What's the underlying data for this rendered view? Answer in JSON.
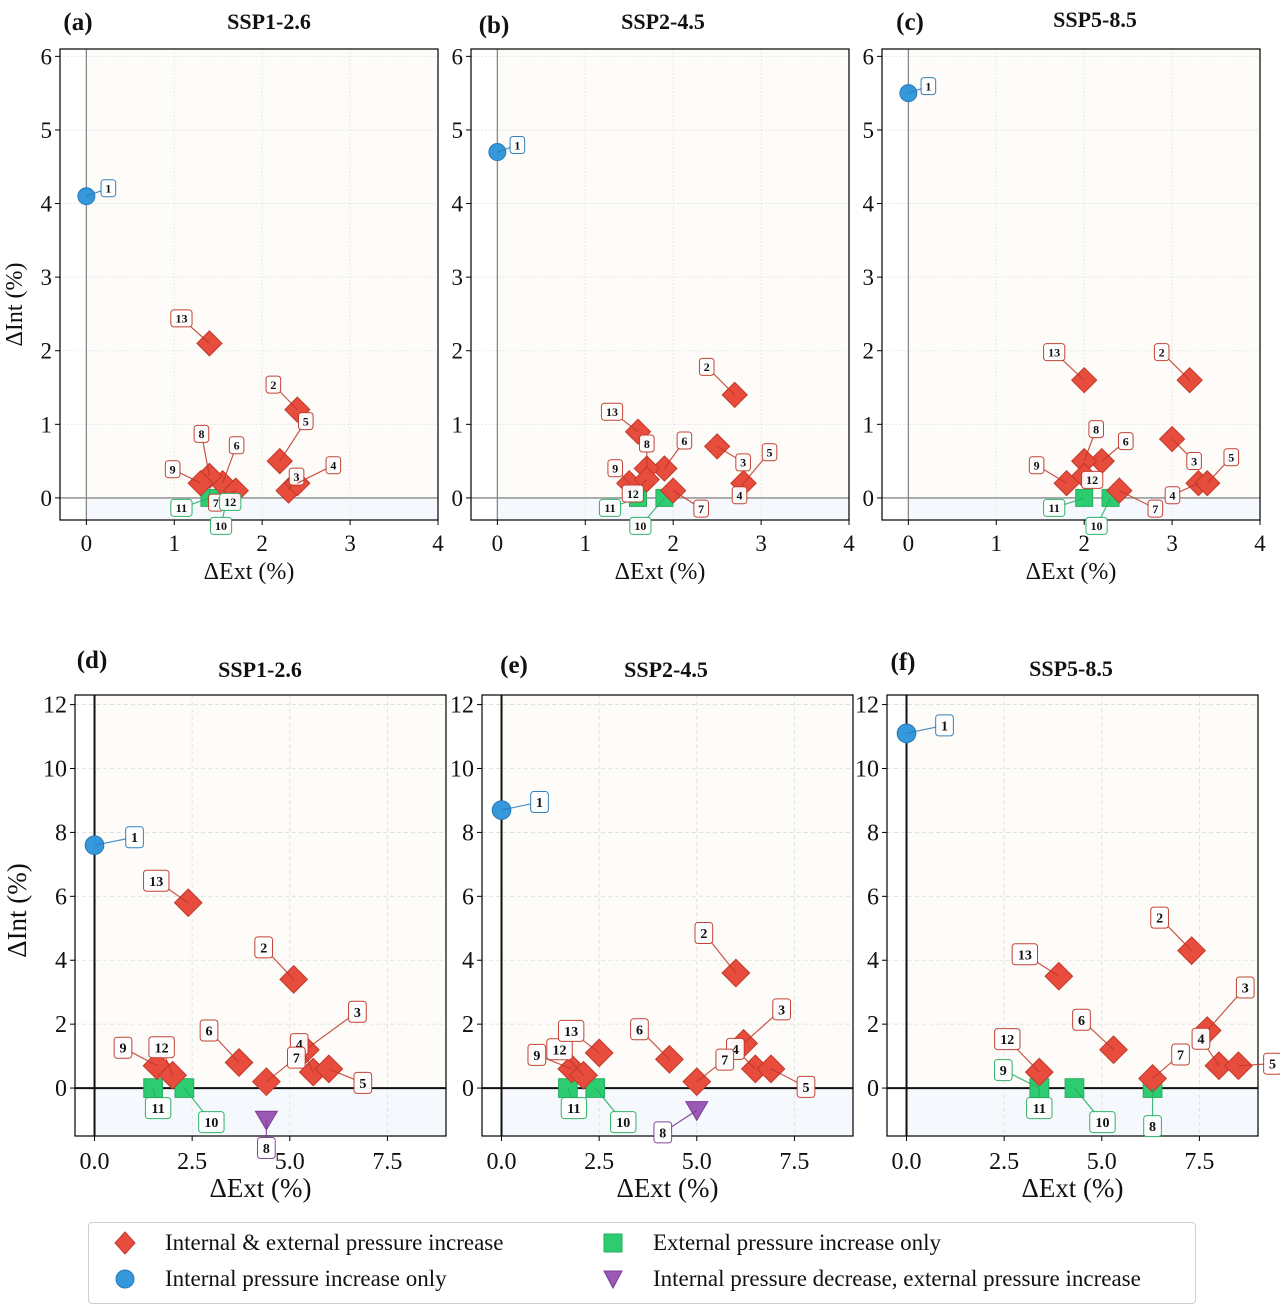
{
  "chart_data": [
    {
      "type": "scatter",
      "panel_label": "(a)",
      "title": "SSP1-2.6",
      "xlabel": "ΔExt (%)",
      "ylabel": "ΔInt (%)",
      "xlim": [
        -0.3,
        4
      ],
      "ylim": [
        -0.3,
        6.1
      ],
      "xticks": [
        0,
        1,
        2,
        3,
        4
      ],
      "xtick_labels": [
        "0",
        "1",
        "2",
        "3",
        "4"
      ],
      "yticks": [
        0,
        1,
        2,
        3,
        4,
        5,
        6
      ],
      "ytick_labels": [
        "0",
        "1",
        "2",
        "3",
        "4",
        "5",
        "6"
      ],
      "grid": true,
      "points": [
        {
          "id": "1",
          "x": 0.0,
          "y": 4.1,
          "category": "internal_only"
        },
        {
          "id": "2",
          "x": 2.4,
          "y": 1.2,
          "category": "both"
        },
        {
          "id": "3",
          "x": 2.3,
          "y": 0.1,
          "category": "both"
        },
        {
          "id": "4",
          "x": 2.4,
          "y": 0.2,
          "category": "both"
        },
        {
          "id": "5",
          "x": 2.2,
          "y": 0.5,
          "category": "both"
        },
        {
          "id": "6",
          "x": 1.55,
          "y": 0.2,
          "category": "both"
        },
        {
          "id": "7",
          "x": 1.7,
          "y": 0.1,
          "category": "both"
        },
        {
          "id": "8",
          "x": 1.4,
          "y": 0.3,
          "category": "both"
        },
        {
          "id": "9",
          "x": 1.3,
          "y": 0.2,
          "category": "both"
        },
        {
          "id": "10",
          "x": 1.6,
          "y": 0.0,
          "category": "external_only"
        },
        {
          "id": "11",
          "x": 1.4,
          "y": 0.0,
          "category": "external_only"
        },
        {
          "id": "12",
          "x": 1.5,
          "y": 0.0,
          "category": "external_only"
        },
        {
          "id": "13",
          "x": 1.4,
          "y": 2.1,
          "category": "both"
        }
      ]
    },
    {
      "type": "scatter",
      "panel_label": "(b)",
      "title": "SSP2-4.5",
      "xlabel": "ΔExt (%)",
      "ylabel": "",
      "xlim": [
        -0.3,
        4
      ],
      "ylim": [
        -0.3,
        6.1
      ],
      "xticks": [
        0,
        1,
        2,
        3,
        4
      ],
      "xtick_labels": [
        "0",
        "1",
        "2",
        "3",
        "4"
      ],
      "yticks": [
        0,
        1,
        2,
        3,
        4,
        5,
        6
      ],
      "ytick_labels": [
        "0",
        "1",
        "2",
        "3",
        "4",
        "5",
        "6"
      ],
      "grid": true,
      "points": [
        {
          "id": "1",
          "x": 0.0,
          "y": 4.7,
          "category": "internal_only"
        },
        {
          "id": "2",
          "x": 2.7,
          "y": 1.4,
          "category": "both"
        },
        {
          "id": "3",
          "x": 2.5,
          "y": 0.7,
          "category": "both"
        },
        {
          "id": "4",
          "x": 2.8,
          "y": 0.2,
          "category": "both"
        },
        {
          "id": "5",
          "x": 2.8,
          "y": 0.2,
          "category": "both"
        },
        {
          "id": "6",
          "x": 1.9,
          "y": 0.4,
          "category": "both"
        },
        {
          "id": "7",
          "x": 2.0,
          "y": 0.1,
          "category": "both"
        },
        {
          "id": "8",
          "x": 1.7,
          "y": 0.4,
          "category": "both"
        },
        {
          "id": "9",
          "x": 1.5,
          "y": 0.2,
          "category": "both"
        },
        {
          "id": "10",
          "x": 1.9,
          "y": 0.0,
          "category": "external_only"
        },
        {
          "id": "11",
          "x": 1.6,
          "y": 0.0,
          "category": "external_only"
        },
        {
          "id": "12",
          "x": 1.7,
          "y": 0.25,
          "category": "both"
        },
        {
          "id": "13",
          "x": 1.6,
          "y": 0.9,
          "category": "both"
        }
      ]
    },
    {
      "type": "scatter",
      "panel_label": "(c)",
      "title": "SSP5-8.5",
      "xlabel": "ΔExt (%)",
      "ylabel": "",
      "xlim": [
        -0.3,
        4
      ],
      "ylim": [
        -0.3,
        6.1
      ],
      "xticks": [
        0,
        1,
        2,
        3,
        4
      ],
      "xtick_labels": [
        "0",
        "1",
        "2",
        "3",
        "4"
      ],
      "yticks": [
        0,
        1,
        2,
        3,
        4,
        5,
        6
      ],
      "ytick_labels": [
        "0",
        "1",
        "2",
        "3",
        "4",
        "5",
        "6"
      ],
      "grid": true,
      "points": [
        {
          "id": "1",
          "x": 0.0,
          "y": 5.5,
          "category": "internal_only"
        },
        {
          "id": "2",
          "x": 3.2,
          "y": 1.6,
          "category": "both"
        },
        {
          "id": "3",
          "x": 3.0,
          "y": 0.8,
          "category": "both"
        },
        {
          "id": "4",
          "x": 3.3,
          "y": 0.2,
          "category": "both"
        },
        {
          "id": "5",
          "x": 3.4,
          "y": 0.2,
          "category": "both"
        },
        {
          "id": "6",
          "x": 2.2,
          "y": 0.5,
          "category": "both"
        },
        {
          "id": "7",
          "x": 2.4,
          "y": 0.1,
          "category": "both"
        },
        {
          "id": "8",
          "x": 2.0,
          "y": 0.5,
          "category": "both"
        },
        {
          "id": "9",
          "x": 1.8,
          "y": 0.2,
          "category": "both"
        },
        {
          "id": "10",
          "x": 2.3,
          "y": 0.0,
          "category": "external_only"
        },
        {
          "id": "11",
          "x": 2.0,
          "y": 0.0,
          "category": "external_only"
        },
        {
          "id": "12",
          "x": 2.0,
          "y": 0.3,
          "category": "both"
        },
        {
          "id": "13",
          "x": 2.0,
          "y": 1.6,
          "category": "both"
        }
      ]
    },
    {
      "type": "scatter",
      "panel_label": "(d)",
      "title": "SSP1-2.6",
      "xlabel": "ΔExt (%)",
      "ylabel": "ΔInt (%)",
      "xlim": [
        -0.5,
        9
      ],
      "ylim": [
        -1.5,
        12.3
      ],
      "xticks": [
        0,
        2.5,
        5,
        7.5
      ],
      "xtick_labels": [
        "0.0",
        "2.5",
        "5.0",
        "7.5"
      ],
      "yticks": [
        0,
        2,
        4,
        6,
        8,
        10,
        12
      ],
      "ytick_labels": [
        "0",
        "2",
        "4",
        "6",
        "8",
        "10",
        "12"
      ],
      "grid": true,
      "points": [
        {
          "id": "1",
          "x": 0.0,
          "y": 7.6,
          "category": "internal_only"
        },
        {
          "id": "2",
          "x": 5.1,
          "y": 3.4,
          "category": "both"
        },
        {
          "id": "3",
          "x": 5.4,
          "y": 1.2,
          "category": "both"
        },
        {
          "id": "4",
          "x": 5.6,
          "y": 0.5,
          "category": "both"
        },
        {
          "id": "5",
          "x": 6.0,
          "y": 0.6,
          "category": "both"
        },
        {
          "id": "6",
          "x": 3.7,
          "y": 0.8,
          "category": "both"
        },
        {
          "id": "7",
          "x": 4.4,
          "y": 0.2,
          "category": "both"
        },
        {
          "id": "8",
          "x": 4.4,
          "y": -1.0,
          "category": "internal_decrease"
        },
        {
          "id": "9",
          "x": 1.6,
          "y": 0.7,
          "category": "both"
        },
        {
          "id": "10",
          "x": 2.3,
          "y": 0.0,
          "category": "external_only"
        },
        {
          "id": "11",
          "x": 1.5,
          "y": 0.0,
          "category": "external_only"
        },
        {
          "id": "12",
          "x": 2.0,
          "y": 0.4,
          "category": "both"
        },
        {
          "id": "13",
          "x": 2.4,
          "y": 5.8,
          "category": "both"
        }
      ]
    },
    {
      "type": "scatter",
      "panel_label": "(e)",
      "title": "SSP2-4.5",
      "xlabel": "ΔExt (%)",
      "ylabel": "",
      "xlim": [
        -0.5,
        9
      ],
      "ylim": [
        -1.5,
        12.3
      ],
      "xticks": [
        0,
        2.5,
        5,
        7.5
      ],
      "xtick_labels": [
        "0.0",
        "2.5",
        "5.0",
        "7.5"
      ],
      "yticks": [
        0,
        2,
        4,
        6,
        8,
        10,
        12
      ],
      "ytick_labels": [
        "0",
        "2",
        "4",
        "6",
        "8",
        "10",
        "12"
      ],
      "grid": true,
      "points": [
        {
          "id": "1",
          "x": 0.0,
          "y": 8.7,
          "category": "internal_only"
        },
        {
          "id": "2",
          "x": 6.0,
          "y": 3.6,
          "category": "both"
        },
        {
          "id": "3",
          "x": 6.2,
          "y": 1.4,
          "category": "both"
        },
        {
          "id": "4",
          "x": 6.5,
          "y": 0.6,
          "category": "both"
        },
        {
          "id": "5",
          "x": 6.9,
          "y": 0.6,
          "category": "both"
        },
        {
          "id": "6",
          "x": 4.3,
          "y": 0.9,
          "category": "both"
        },
        {
          "id": "7",
          "x": 5.0,
          "y": 0.2,
          "category": "both"
        },
        {
          "id": "8",
          "x": 5.0,
          "y": -0.7,
          "category": "internal_decrease"
        },
        {
          "id": "9",
          "x": 1.8,
          "y": 0.6,
          "category": "both"
        },
        {
          "id": "10",
          "x": 2.4,
          "y": 0.0,
          "category": "external_only"
        },
        {
          "id": "11",
          "x": 1.7,
          "y": 0.0,
          "category": "external_only"
        },
        {
          "id": "12",
          "x": 2.1,
          "y": 0.4,
          "category": "both"
        },
        {
          "id": "13",
          "x": 2.5,
          "y": 1.1,
          "category": "both"
        }
      ]
    },
    {
      "type": "scatter",
      "panel_label": "(f)",
      "title": "SSP5-8.5",
      "xlabel": "ΔExt (%)",
      "ylabel": "",
      "xlim": [
        -0.5,
        9
      ],
      "ylim": [
        -1.5,
        12.3
      ],
      "xticks": [
        0,
        2.5,
        5,
        7.5
      ],
      "xtick_labels": [
        "0.0",
        "2.5",
        "5.0",
        "7.5"
      ],
      "yticks": [
        0,
        2,
        4,
        6,
        8,
        10,
        12
      ],
      "ytick_labels": [
        "0",
        "2",
        "4",
        "6",
        "8",
        "10",
        "12"
      ],
      "grid": true,
      "points": [
        {
          "id": "1",
          "x": 0.0,
          "y": 11.1,
          "category": "internal_only"
        },
        {
          "id": "2",
          "x": 7.3,
          "y": 4.3,
          "category": "both"
        },
        {
          "id": "3",
          "x": 7.7,
          "y": 1.8,
          "category": "both"
        },
        {
          "id": "4",
          "x": 8.0,
          "y": 0.7,
          "category": "both"
        },
        {
          "id": "5",
          "x": 8.5,
          "y": 0.7,
          "category": "both"
        },
        {
          "id": "6",
          "x": 5.3,
          "y": 1.2,
          "category": "both"
        },
        {
          "id": "7",
          "x": 6.3,
          "y": 0.3,
          "category": "both"
        },
        {
          "id": "8",
          "x": 6.3,
          "y": 0.0,
          "category": "external_only"
        },
        {
          "id": "9",
          "x": 3.4,
          "y": 0.0,
          "category": "external_only"
        },
        {
          "id": "10",
          "x": 4.3,
          "y": 0.0,
          "category": "external_only"
        },
        {
          "id": "11",
          "x": 3.4,
          "y": 0.0,
          "category": "external_only"
        },
        {
          "id": "12",
          "x": 3.4,
          "y": 0.5,
          "category": "both"
        },
        {
          "id": "13",
          "x": 3.9,
          "y": 3.5,
          "category": "both"
        }
      ]
    }
  ],
  "legend": {
    "placement": "bottom-center",
    "items": [
      {
        "key": "both",
        "label": "Internal & external pressure increase",
        "marker": "diamond",
        "color": "#e74c3c"
      },
      {
        "key": "internal_only",
        "label": "Internal pressure increase only",
        "marker": "circle",
        "color": "#3498db"
      },
      {
        "key": "external_only",
        "label": "External pressure increase only",
        "marker": "square",
        "color": "#2ecc71"
      },
      {
        "key": "internal_decrease",
        "label": "Internal pressure decrease, external pressure increase",
        "marker": "triangle-down",
        "color": "#9b59b6"
      }
    ]
  },
  "colors": {
    "both": "#e74c3c",
    "both_edge": "#c0392b",
    "internal_only": "#3498db",
    "internal_only_edge": "#2a7ab8",
    "external_only": "#2ecc71",
    "external_only_edge": "#27ae60",
    "internal_decrease": "#9b59b6",
    "internal_decrease_edge": "#7d3c98",
    "upper_region": "#fdfcf8",
    "lower_region": "#f5f9fd"
  }
}
